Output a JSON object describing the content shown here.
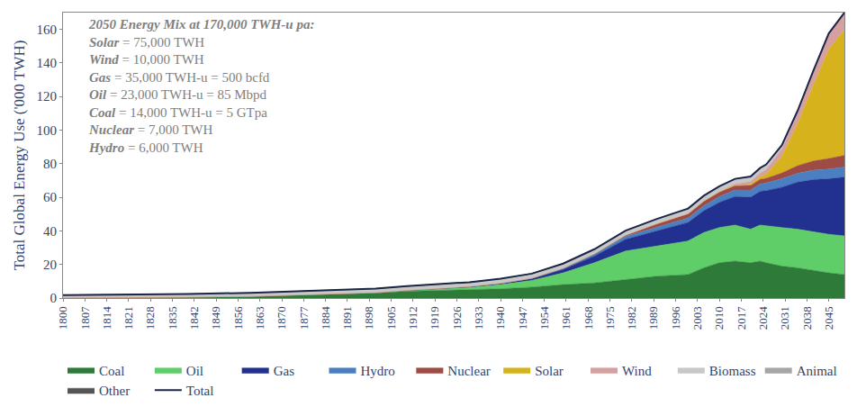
{
  "chart_data": {
    "type": "area",
    "stacked": true,
    "grid": false,
    "legend": "bottom",
    "y_label": "Total Global Energy Use ('000 TWH)",
    "annotation": {
      "title": "2050 Energy Mix at 170,000 TWH-u pa:",
      "lines": [
        {
          "label": "Solar",
          "text": "= 75,000 TWH"
        },
        {
          "label": "Wind",
          "text": "= 10,000 TWH"
        },
        {
          "label": "Gas",
          "text": "= 35,000 TWH-u = 500 bcfd"
        },
        {
          "label": "Oil",
          "text": "= 23,000 TWH-u = 85 Mbpd"
        },
        {
          "label": "Coal",
          "text": "= 14,000 TWH-u = 5 GTpa"
        },
        {
          "label": "Nuclear",
          "text": "= 7,000 TWH"
        },
        {
          "label": "Hydro",
          "text": "= 6,000 TWH"
        }
      ]
    },
    "x": [
      1800,
      1820,
      1840,
      1860,
      1880,
      1900,
      1910,
      1920,
      1930,
      1940,
      1950,
      1960,
      1970,
      1980,
      1990,
      2000,
      2005,
      2010,
      2015,
      2020,
      2023,
      2025,
      2030,
      2035,
      2040,
      2045,
      2050
    ],
    "xlim": [
      1800,
      2050
    ],
    "xticks": [
      1800,
      1807,
      1814,
      1821,
      1828,
      1835,
      1842,
      1849,
      1856,
      1863,
      1870,
      1877,
      1884,
      1891,
      1898,
      1905,
      1912,
      1919,
      1926,
      1933,
      1940,
      1947,
      1954,
      1961,
      1968,
      1975,
      1982,
      1989,
      1996,
      2003,
      2010,
      2017,
      2024,
      2031,
      2038,
      2045
    ],
    "ylim": [
      0,
      170
    ],
    "yticks": [
      0,
      20,
      40,
      60,
      80,
      100,
      120,
      140,
      160
    ],
    "series": [
      {
        "name": "Coal",
        "type": "area",
        "color": "#2e7a38",
        "values": [
          0.1,
          0.2,
          0.5,
          1.0,
          2.0,
          3.0,
          4.0,
          4.5,
          4.8,
          5.5,
          6.5,
          8,
          9,
          11,
          13,
          14,
          18,
          21,
          22,
          21,
          22,
          21,
          19,
          18,
          16.5,
          15,
          14
        ]
      },
      {
        "name": "Oil",
        "type": "area",
        "color": "#5fcd68",
        "values": [
          0,
          0,
          0,
          0,
          0.05,
          0.2,
          0.4,
          0.8,
          1.5,
          2.5,
          4,
          7,
          12,
          17,
          18,
          20,
          21,
          21,
          21.5,
          20,
          21.5,
          22,
          23,
          23,
          23,
          23,
          23
        ]
      },
      {
        "name": "Gas",
        "type": "area",
        "color": "#22308f",
        "values": [
          0,
          0,
          0,
          0,
          0,
          0,
          0.1,
          0.2,
          0.4,
          0.6,
          1,
          2,
          4,
          7,
          9,
          11,
          13,
          15,
          17,
          19,
          20,
          21,
          24,
          28,
          31,
          33,
          35
        ]
      },
      {
        "name": "Hydro",
        "type": "area",
        "color": "#4a7fc1",
        "values": [
          0,
          0,
          0,
          0,
          0,
          0.02,
          0.05,
          0.08,
          0.15,
          0.2,
          0.3,
          0.7,
          1.2,
          1.7,
          2.2,
          2.7,
          3,
          3.4,
          3.9,
          4.3,
          4.4,
          4.5,
          5,
          5.3,
          5.6,
          5.8,
          6
        ]
      },
      {
        "name": "Nuclear",
        "type": "area",
        "color": "#9e4b45",
        "values": [
          0,
          0,
          0,
          0,
          0,
          0,
          0,
          0,
          0,
          0,
          0,
          0,
          0.1,
          0.7,
          2,
          2.5,
          2.7,
          2.7,
          2.5,
          2.7,
          2.7,
          2.8,
          3.5,
          4.5,
          5.5,
          6.3,
          7
        ]
      },
      {
        "name": "Solar",
        "type": "area",
        "color": "#d6b31c",
        "values": [
          0,
          0,
          0,
          0,
          0,
          0,
          0,
          0,
          0,
          0,
          0,
          0,
          0,
          0,
          0,
          0,
          0,
          0.03,
          0.25,
          0.8,
          1.6,
          2.5,
          10,
          25,
          45,
          65,
          75
        ]
      },
      {
        "name": "Wind",
        "type": "area",
        "color": "#d6a0a0",
        "values": [
          0,
          0,
          0,
          0,
          0,
          0,
          0,
          0,
          0,
          0,
          0,
          0,
          0,
          0,
          0,
          0.03,
          0.1,
          0.35,
          0.8,
          1.6,
          2.2,
          2.8,
          4.5,
          6,
          7.5,
          9,
          10
        ]
      },
      {
        "name": "Biomass",
        "type": "area",
        "color": "#c8c8c8",
        "values": [
          1.4,
          1.5,
          1.6,
          1.7,
          1.8,
          1.9,
          2.0,
          2.0,
          2.1,
          2.2,
          2.3,
          2.4,
          2.5,
          2.6,
          2.7,
          2.8,
          2.8,
          2.8,
          2.8,
          2.8,
          2.8,
          2.8,
          2,
          1.5,
          1,
          0.5,
          0
        ]
      },
      {
        "name": "Animal",
        "type": "area",
        "color": "#a6a6a6",
        "values": [
          0.3,
          0.3,
          0.35,
          0.4,
          0.45,
          0.5,
          0.5,
          0.5,
          0.5,
          0.5,
          0.45,
          0.4,
          0.3,
          0.2,
          0.15,
          0.1,
          0.1,
          0.05,
          0.05,
          0,
          0,
          0,
          0,
          0,
          0,
          0,
          0
        ]
      },
      {
        "name": "Other",
        "type": "area",
        "color": "#555555",
        "values": [
          0,
          0,
          0,
          0,
          0,
          0,
          0,
          0,
          0,
          0,
          0,
          0,
          0,
          0,
          0.1,
          0.2,
          0.2,
          0.2,
          0.2,
          0.2,
          0.2,
          0.2,
          0.1,
          0.1,
          0,
          0,
          0
        ]
      },
      {
        "name": "Total",
        "type": "line",
        "color": "#1c2748",
        "values": [
          1.8,
          2.0,
          2.45,
          3.1,
          4.3,
          5.62,
          7.05,
          8.08,
          9.45,
          11.5,
          14.55,
          20.5,
          29.1,
          40.2,
          47.15,
          53.33,
          60.9,
          66.53,
          71.0,
          72.4,
          77.4,
          79.6,
          91.1,
          111.4,
          135.1,
          157.6,
          170.0
        ]
      }
    ]
  }
}
